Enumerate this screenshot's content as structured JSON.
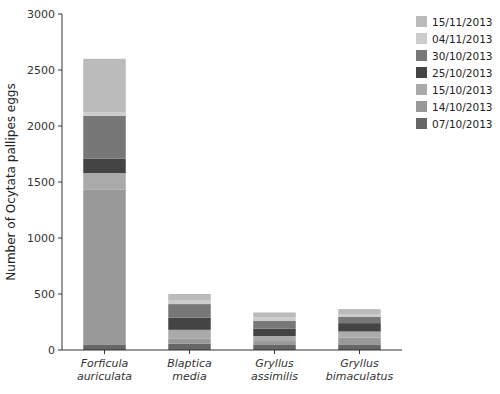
{
  "chart_data": {
    "type": "bar",
    "stacked": true,
    "categories": [
      "Forficula\nauriculata",
      "Blaptica\nmedia",
      "Gryllus\nassimilis",
      "Gryllus\nbimaculatus"
    ],
    "series": [
      {
        "name": "07/10/2013",
        "color": "#666666",
        "values": [
          50,
          55,
          45,
          50
        ]
      },
      {
        "name": "14/10/2013",
        "color": "#999999",
        "values": [
          1380,
          45,
          35,
          60
        ]
      },
      {
        "name": "15/10/2013",
        "color": "#aaaaaa",
        "values": [
          150,
          80,
          45,
          55
        ]
      },
      {
        "name": "25/10/2013",
        "color": "#444444",
        "values": [
          130,
          110,
          65,
          75
        ]
      },
      {
        "name": "30/10/2013",
        "color": "#777777",
        "values": [
          380,
          120,
          70,
          55
        ]
      },
      {
        "name": "04/11/2013",
        "color": "#cccccc",
        "values": [
          30,
          30,
          35,
          20
        ]
      },
      {
        "name": "15/11/2013",
        "color": "#bbbbbb",
        "values": [
          480,
          60,
          40,
          50
        ]
      }
    ],
    "ylabel": "Number of Ocytata pallipes eggs",
    "ylim": [
      0,
      3000
    ],
    "yticks": [
      0,
      500,
      1000,
      1500,
      2000,
      2500,
      3000
    ],
    "grid": false,
    "legend": "upper right"
  }
}
